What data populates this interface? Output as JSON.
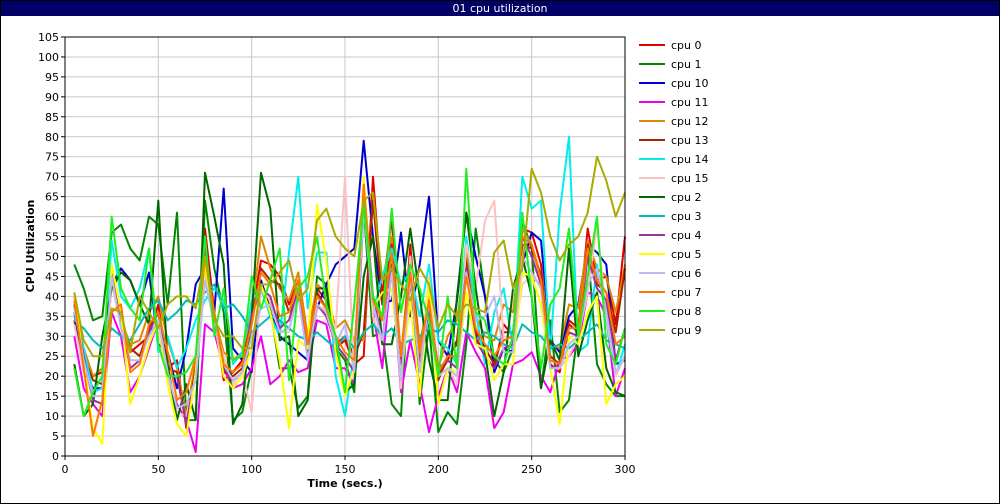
{
  "window": {
    "title": "01 cpu utilization",
    "title_bar_color": "#000066"
  },
  "chart_data": {
    "type": "line",
    "title": "01 cpu utilization",
    "xlabel": "Time (secs.)",
    "ylabel": "CPU Utilization",
    "xlim": [
      0,
      300
    ],
    "ylim": [
      0,
      105
    ],
    "xticks": [
      0,
      50,
      100,
      150,
      200,
      250,
      300
    ],
    "yticks": [
      0,
      5,
      10,
      15,
      20,
      25,
      30,
      35,
      40,
      45,
      50,
      55,
      60,
      65,
      70,
      75,
      80,
      85,
      90,
      95,
      100,
      105
    ],
    "grid": true,
    "legend_position": "right",
    "x": [
      5,
      10,
      15,
      20,
      25,
      30,
      35,
      40,
      45,
      50,
      55,
      60,
      65,
      70,
      75,
      80,
      85,
      90,
      95,
      100,
      105,
      110,
      115,
      120,
      125,
      130,
      135,
      140,
      145,
      150,
      155,
      160,
      165,
      170,
      175,
      180,
      185,
      190,
      195,
      200,
      205,
      210,
      215,
      220,
      225,
      230,
      235,
      240,
      245,
      250,
      255,
      260,
      265,
      270,
      275,
      280,
      285,
      290,
      295,
      300
    ],
    "series": [
      {
        "name": "cpu 0",
        "color": "#e00000",
        "values": [
          34,
          22,
          20,
          21,
          47,
          35,
          26,
          28,
          30,
          38,
          22,
          24,
          7,
          23,
          57,
          36,
          19,
          21,
          24,
          35,
          49,
          48,
          45,
          38,
          44,
          28,
          42,
          39,
          27,
          29,
          23,
          25,
          70,
          40,
          60,
          20,
          53,
          23,
          39,
          20,
          24,
          29,
          50,
          30,
          25,
          22,
          33,
          30,
          57,
          56,
          48,
          23,
          21,
          34,
          32,
          57,
          44,
          45,
          33,
          55
        ]
      },
      {
        "name": "cpu 1",
        "color": "#008800",
        "values": [
          48,
          42,
          34,
          35,
          56,
          58,
          52,
          49,
          60,
          58,
          38,
          61,
          9,
          9,
          64,
          47,
          36,
          9,
          11,
          22,
          44,
          37,
          22,
          22,
          12,
          15,
          45,
          43,
          27,
          24,
          16,
          62,
          30,
          31,
          13,
          10,
          50,
          13,
          33,
          6,
          11,
          8,
          28,
          57,
          40,
          24,
          21,
          27,
          59,
          52,
          17,
          34,
          11,
          14,
          32,
          52,
          23,
          18,
          15,
          15
        ]
      },
      {
        "name": "cpu 10",
        "color": "#0000cc",
        "values": [
          36,
          22,
          17,
          17,
          43,
          47,
          44,
          38,
          46,
          28,
          26,
          17,
          27,
          43,
          47,
          36,
          67,
          27,
          24,
          21,
          44,
          36,
          30,
          28,
          26,
          24,
          37,
          43,
          48,
          50,
          52,
          79,
          55,
          38,
          39,
          56,
          35,
          48,
          65,
          29,
          25,
          39,
          61,
          50,
          40,
          21,
          27,
          26,
          48,
          56,
          54,
          29,
          26,
          35,
          38,
          53,
          51,
          48,
          23,
          24
        ]
      },
      {
        "name": "cpu 11",
        "color": "#ee00ee",
        "values": [
          30,
          17,
          13,
          10,
          36,
          30,
          16,
          20,
          27,
          34,
          19,
          13,
          9,
          1,
          33,
          31,
          22,
          17,
          18,
          22,
          30,
          18,
          20,
          24,
          21,
          22,
          34,
          33,
          22,
          22,
          18,
          64,
          36,
          22,
          48,
          16,
          29,
          18,
          6,
          15,
          22,
          16,
          31,
          26,
          22,
          7,
          11,
          23,
          24,
          26,
          20,
          16,
          24,
          25,
          28,
          41,
          40,
          35,
          15,
          22
        ]
      },
      {
        "name": "cpu 12",
        "color": "#dd8800",
        "values": [
          40,
          27,
          20,
          22,
          44,
          34,
          28,
          29,
          36,
          40,
          29,
          22,
          10,
          24,
          48,
          35,
          26,
          24,
          26,
          36,
          55,
          47,
          42,
          39,
          46,
          30,
          43,
          41,
          32,
          34,
          29,
          29,
          65,
          44,
          55,
          25,
          50,
          28,
          40,
          22,
          30,
          34,
          52,
          35,
          30,
          29,
          38,
          36,
          57,
          53,
          45,
          28,
          27,
          38,
          37,
          54,
          47,
          45,
          36,
          48
        ]
      },
      {
        "name": "cpu 13",
        "color": "#aa2200",
        "values": [
          38,
          25,
          19,
          18,
          44,
          34,
          27,
          25,
          32,
          36,
          22,
          21,
          8,
          22,
          52,
          34,
          21,
          20,
          22,
          33,
          47,
          44,
          43,
          36,
          40,
          27,
          41,
          37,
          28,
          30,
          25,
          31,
          64,
          38,
          53,
          22,
          50,
          25,
          37,
          19,
          25,
          28,
          48,
          31,
          27,
          23,
          31,
          31,
          53,
          52,
          45,
          25,
          23,
          33,
          31,
          53,
          43,
          41,
          31,
          47
        ]
      },
      {
        "name": "cpu 14",
        "color": "#00eeee",
        "values": [
          36,
          27,
          16,
          17,
          54,
          40,
          37,
          42,
          52,
          26,
          30,
          22,
          27,
          34,
          39,
          42,
          39,
          23,
          26,
          39,
          42,
          35,
          30,
          51,
          70,
          37,
          51,
          51,
          20,
          10,
          26,
          64,
          36,
          45,
          52,
          43,
          46,
          35,
          48,
          29,
          27,
          23,
          55,
          36,
          23,
          36,
          42,
          27,
          70,
          62,
          64,
          26,
          61,
          80,
          26,
          28,
          48,
          34,
          20,
          28
        ]
      },
      {
        "name": "cpu 15",
        "color": "#ffc0c0",
        "values": [
          33,
          21,
          15,
          15,
          43,
          33,
          22,
          24,
          31,
          32,
          19,
          11,
          10,
          20,
          46,
          33,
          25,
          18,
          21,
          11,
          42,
          39,
          31,
          31,
          42,
          25,
          37,
          37,
          32,
          70,
          20,
          67,
          35,
          28,
          50,
          17,
          50,
          21,
          45,
          20,
          22,
          18,
          53,
          42,
          59,
          64,
          29,
          28,
          43,
          45,
          43,
          22,
          22,
          25,
          30,
          41,
          58,
          35,
          20,
          25
        ]
      },
      {
        "name": "cpu 2",
        "color": "#006600",
        "values": [
          23,
          10,
          13,
          30,
          42,
          46,
          44,
          38,
          33,
          64,
          23,
          9,
          18,
          9,
          71,
          60,
          48,
          8,
          13,
          35,
          71,
          62,
          29,
          30,
          10,
          14,
          42,
          42,
          27,
          16,
          18,
          45,
          55,
          28,
          28,
          40,
          57,
          40,
          24,
          14,
          14,
          40,
          61,
          42,
          26,
          10,
          21,
          42,
          50,
          40,
          17,
          29,
          24,
          52,
          25,
          34,
          41,
          22,
          16,
          15
        ]
      },
      {
        "name": "cpu 3",
        "color": "#00bbbb",
        "values": [
          34,
          32,
          29,
          27,
          32,
          30,
          29,
          33,
          37,
          39,
          34,
          36,
          39,
          38,
          41,
          43,
          37,
          38,
          35,
          31,
          33,
          35,
          34,
          32,
          30,
          29,
          31,
          29,
          27,
          30,
          27,
          31,
          33,
          30,
          32,
          28,
          29,
          30,
          32,
          31,
          34,
          33,
          31,
          29,
          31,
          30,
          28,
          27,
          33,
          31,
          30,
          27,
          28,
          27,
          29,
          31,
          33,
          29,
          28,
          27
        ]
      },
      {
        "name": "cpu 4",
        "color": "#993399",
        "values": [
          38,
          25,
          14,
          13,
          46,
          34,
          22,
          24,
          31,
          36,
          20,
          20,
          8,
          21,
          53,
          33,
          22,
          19,
          21,
          35,
          42,
          40,
          32,
          34,
          42,
          25,
          38,
          35,
          28,
          25,
          21,
          68,
          40,
          29,
          48,
          21,
          44,
          22,
          37,
          22,
          24,
          22,
          47,
          29,
          25,
          22,
          27,
          28,
          55,
          50,
          43,
          22,
          23,
          31,
          30,
          50,
          42,
          39,
          24,
          32
        ]
      },
      {
        "name": "cpu 5",
        "color": "#ffff00",
        "values": [
          41,
          23,
          7,
          3,
          48,
          36,
          13,
          20,
          28,
          34,
          18,
          8,
          5,
          21,
          48,
          34,
          20,
          17,
          20,
          27,
          43,
          36,
          24,
          7,
          29,
          27,
          63,
          49,
          26,
          15,
          22,
          70,
          37,
          41,
          42,
          20,
          39,
          15,
          44,
          13,
          22,
          21,
          41,
          28,
          27,
          19,
          23,
          23,
          46,
          45,
          38,
          22,
          8,
          30,
          28,
          36,
          40,
          13,
          18,
          20
        ]
      },
      {
        "name": "cpu 6",
        "color": "#bbbbee",
        "values": [
          37,
          24,
          15,
          15,
          45,
          32,
          24,
          24,
          30,
          34,
          21,
          12,
          13,
          19,
          44,
          33,
          23,
          19,
          21,
          30,
          37,
          38,
          31,
          32,
          40,
          24,
          38,
          36,
          28,
          33,
          21,
          62,
          38,
          29,
          46,
          19,
          45,
          21,
          39,
          20,
          22,
          20,
          46,
          34,
          35,
          40,
          26,
          26,
          50,
          46,
          42,
          22,
          22,
          28,
          30,
          43,
          47,
          36,
          21,
          25
        ]
      },
      {
        "name": "cpu 7",
        "color": "#ff7700",
        "values": [
          39,
          22,
          5,
          14,
          36,
          38,
          21,
          23,
          33,
          36,
          26,
          14,
          16,
          25,
          50,
          36,
          23,
          21,
          23,
          33,
          46,
          43,
          35,
          36,
          44,
          28,
          40,
          37,
          30,
          26,
          24,
          68,
          39,
          34,
          51,
          25,
          46,
          26,
          39,
          21,
          25,
          25,
          45,
          32,
          28,
          25,
          29,
          30,
          55,
          53,
          44,
          24,
          23,
          32,
          32,
          52,
          44,
          41,
          28,
          30
        ]
      },
      {
        "name": "cpu 8",
        "color": "#22ee22",
        "values": [
          22,
          10,
          16,
          20,
          60,
          42,
          37,
          34,
          52,
          28,
          20,
          20,
          21,
          25,
          55,
          30,
          42,
          24,
          25,
          45,
          37,
          44,
          52,
          19,
          42,
          45,
          55,
          38,
          30,
          16,
          38,
          63,
          40,
          35,
          62,
          36,
          48,
          42,
          34,
          20,
          40,
          22,
          72,
          36,
          34,
          25,
          23,
          30,
          61,
          40,
          22,
          38,
          42,
          57,
          30,
          45,
          60,
          28,
          23,
          32
        ]
      },
      {
        "name": "cpu 9",
        "color": "#aaaa00",
        "values": [
          41,
          29,
          25,
          25,
          37,
          36,
          26,
          40,
          36,
          32,
          38,
          40,
          40,
          37,
          50,
          34,
          30,
          30,
          27,
          27,
          43,
          43,
          46,
          49,
          39,
          42,
          59,
          62,
          55,
          52,
          50,
          64,
          66,
          44,
          47,
          43,
          39,
          47,
          43,
          32,
          38,
          35,
          38,
          37,
          36,
          51,
          54,
          42,
          47,
          72,
          66,
          55,
          49,
          53,
          55,
          61,
          75,
          69,
          60,
          66
        ]
      }
    ]
  }
}
